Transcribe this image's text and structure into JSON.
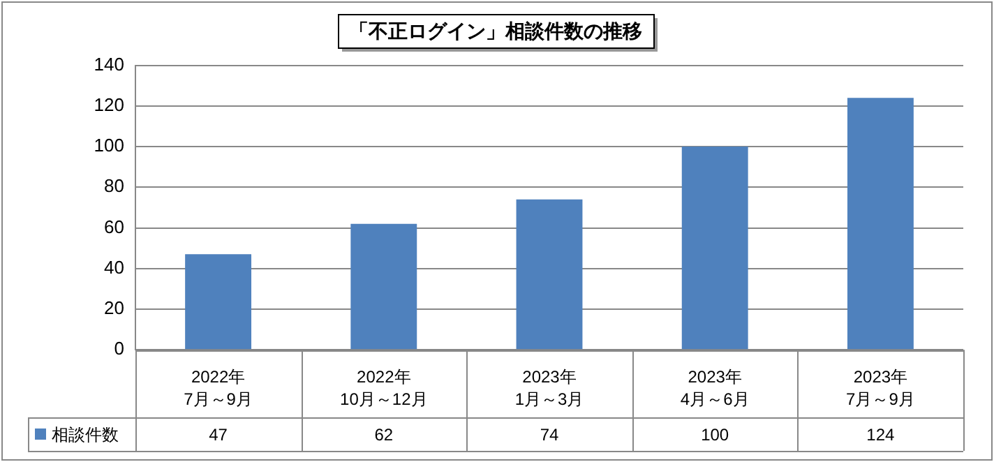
{
  "chart_data": {
    "type": "bar",
    "title": "「不正ログイン」相談件数の推移",
    "categories": [
      "2022年\n7月～9月",
      "2022年\n10月～12月",
      "2023年\n1月～3月",
      "2023年\n4月～6月",
      "2023年\n7月～9月"
    ],
    "series": [
      {
        "name": "相談件数",
        "color": "#4f81bd",
        "values": [
          47,
          62,
          74,
          100,
          124
        ]
      }
    ],
    "ylim": [
      0,
      140
    ],
    "yticks": [
      0,
      20,
      40,
      60,
      80,
      100,
      120,
      140
    ],
    "grid": "y",
    "legend": "bottom",
    "data_labels": true
  }
}
